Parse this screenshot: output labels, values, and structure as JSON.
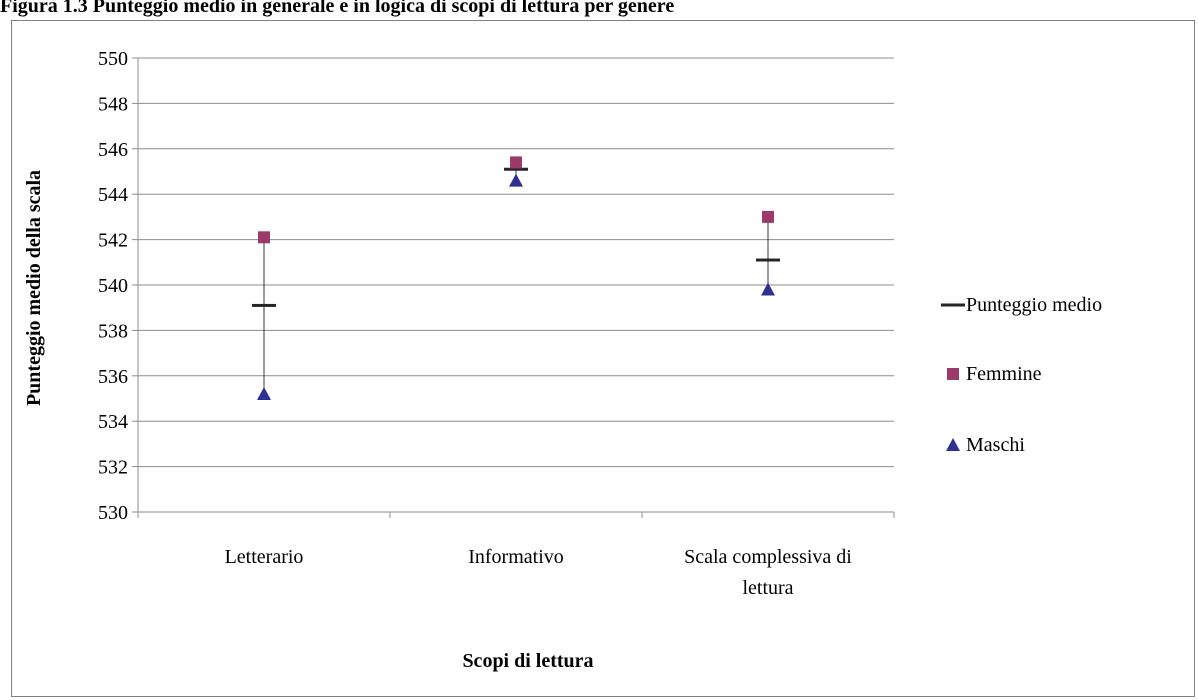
{
  "figure_title": "Figura 1.3 Punteggio medio in generale e in logica di scopi di lettura per genere",
  "chart_data": {
    "type": "scatter",
    "title": "Figura 1.3 Punteggio medio in generale e in logica di scopi di lettura per genere",
    "xlabel": "Scopi di lettura",
    "ylabel": "Punteggio medio della scala",
    "categories": [
      [
        "Letterario"
      ],
      [
        "Informativo"
      ],
      [
        "Scala complessiva di",
        "lettura"
      ]
    ],
    "ylim": [
      530,
      550
    ],
    "ytick_step": 2,
    "grid": true,
    "legend_position": "right",
    "series": [
      {
        "name": "Punteggio medio",
        "marker": "dash",
        "color": "#262626",
        "values": [
          539.1,
          545.1,
          541.1
        ]
      },
      {
        "name": "Femmine",
        "marker": "square",
        "color": "#9b3a6b",
        "values": [
          542.1,
          545.4,
          543.0
        ]
      },
      {
        "name": "Maschi",
        "marker": "triangle",
        "color": "#2e3192",
        "values": [
          535.2,
          544.6,
          539.8
        ]
      }
    ]
  }
}
